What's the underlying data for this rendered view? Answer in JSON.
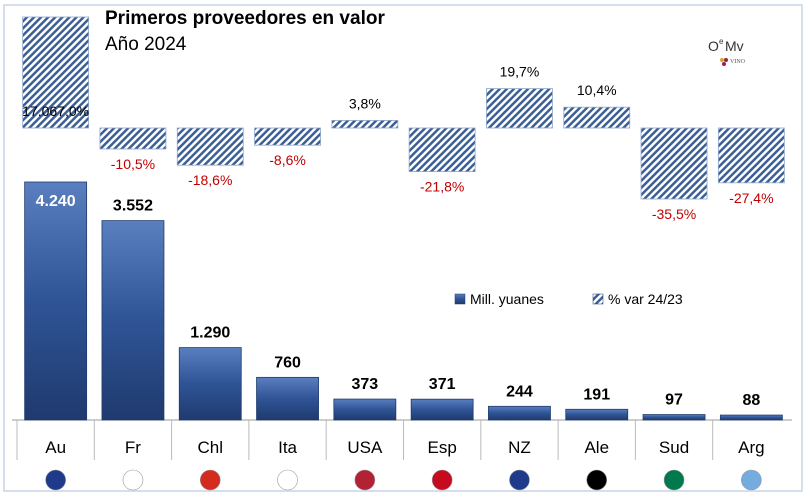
{
  "chart_data": {
    "type": "bar",
    "title": "Primeros proveedores en valor",
    "subtitle": "Año 2024",
    "categories": [
      "Au",
      "Fr",
      "Chl",
      "Ita",
      "USA",
      "Esp",
      "NZ",
      "Ale",
      "Sud",
      "Arg"
    ],
    "series": [
      {
        "name": "Mill. yuanes",
        "values": [
          4240,
          3552,
          1290,
          760,
          373,
          371,
          244,
          191,
          97,
          88
        ],
        "labels": [
          "4.240",
          "3.552",
          "1.290",
          "760",
          "373",
          "371",
          "244",
          "191",
          "97",
          "88"
        ],
        "color": "#2f5496"
      },
      {
        "name": "% var 24/23",
        "values": [
          17067.0,
          -10.5,
          -18.6,
          -8.6,
          3.8,
          -21.8,
          19.7,
          10.4,
          -35.5,
          -27.4
        ],
        "labels": [
          "17.067,0%",
          "-10,5%",
          "-18,6%",
          "-8,6%",
          "3,8%",
          "-21,8%",
          "19,7%",
          "10,4%",
          "-35,5%",
          "-27,4%"
        ],
        "color": "#6f8fc0"
      }
    ],
    "legend": "center-right",
    "negative_label_color": "#c00000",
    "logo_text": "OeMv Vino de España"
  }
}
